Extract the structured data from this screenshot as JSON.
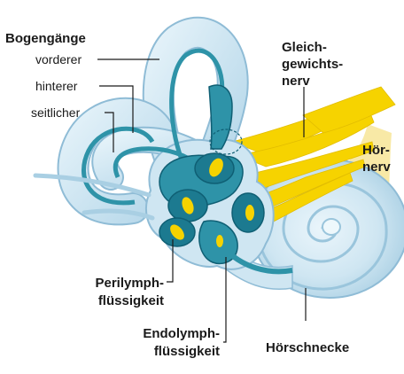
{
  "labels": {
    "bogengaenge": "Bogengänge",
    "vorderer": "vorderer",
    "hinterer": "hinterer",
    "seitlicher": "seitlicher",
    "gleich_line1": "Gleich-",
    "gleich_line2": "gewichts-",
    "gleich_line3": "nerv",
    "hoer_line1": "Hör-",
    "hoer_line2": "nerv",
    "peri_line1": "Perilymph-",
    "peri_line2": "flüssigkeit",
    "endo_line1": "Endolymph-",
    "endo_line2": "flüssigkeit",
    "hoerschnecke": "Hörschnecke"
  },
  "colors": {
    "perilymph": "#cfe6f2",
    "perilymph_edge": "#8fbcd6",
    "endolymph": "#2e93a8",
    "endolymph_dark": "#0f5f74",
    "nerve": "#f6d300",
    "nerve_pale": "#f8e9a6",
    "leader": "#1a1a1a"
  }
}
